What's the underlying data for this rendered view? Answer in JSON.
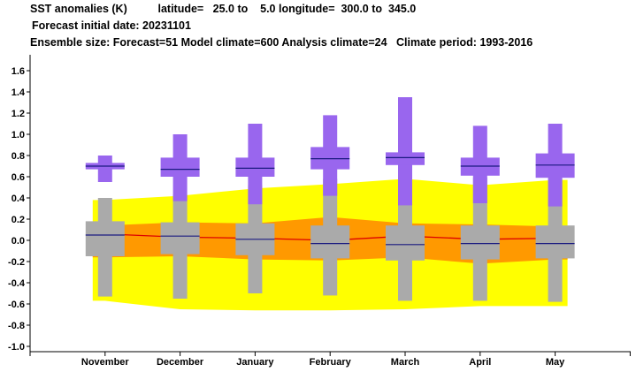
{
  "header": {
    "line1": "SST anomalies (K)          latitude=   25.0 to    5.0 longitude=  300.0 to  345.0",
    "line2": "Forecast initial date: 20231101",
    "line3": "Ensemble size: Forecast=51 Model climate=600 Analysis climate=24   Climate period: 1993-2016"
  },
  "colors": {
    "forecast_box": "#9966ee",
    "climate_box": "#aaaaaa",
    "outer_band": "#ffff00",
    "inner_band": "#ff9900",
    "median_line": "#1a1a80",
    "mean_line": "#dd0000"
  },
  "chart_data": {
    "type": "box",
    "categories": [
      "November",
      "December",
      "January",
      "February",
      "March",
      "April",
      "May"
    ],
    "ylim": [
      -1.05,
      1.75
    ],
    "yticks": [
      "-1.0",
      "-0.8",
      "-0.6",
      "-0.4",
      "-0.2",
      "0.0",
      "0.2",
      "0.4",
      "0.6",
      "0.8",
      "1.0",
      "1.2",
      "1.4",
      "1.6"
    ],
    "grid": false,
    "forecast": {
      "min": [
        0.55,
        0.37,
        0.34,
        0.42,
        0.33,
        0.35,
        0.32
      ],
      "p25": [
        0.67,
        0.6,
        0.6,
        0.67,
        0.71,
        0.61,
        0.59
      ],
      "median": [
        0.7,
        0.67,
        0.68,
        0.77,
        0.78,
        0.7,
        0.71
      ],
      "p75": [
        0.73,
        0.78,
        0.78,
        0.88,
        0.83,
        0.78,
        0.82
      ],
      "max": [
        0.8,
        1.0,
        1.1,
        1.18,
        1.35,
        1.08,
        1.1
      ]
    },
    "model_climate": {
      "min": [
        -0.53,
        -0.55,
        -0.5,
        -0.52,
        -0.57,
        -0.57,
        -0.58
      ],
      "p25": [
        -0.15,
        -0.13,
        -0.14,
        -0.17,
        -0.19,
        -0.18,
        -0.17
      ],
      "median": [
        0.05,
        0.04,
        0.01,
        -0.03,
        -0.04,
        -0.03,
        -0.03
      ],
      "p75": [
        0.18,
        0.17,
        0.16,
        0.14,
        0.14,
        0.14,
        0.14
      ],
      "max": [
        0.4,
        0.43,
        0.52,
        0.58,
        0.65,
        0.59,
        0.58
      ]
    },
    "analysis_climate": {
      "min": [
        -0.57,
        -0.65,
        -0.66,
        -0.66,
        -0.65,
        -0.62,
        -0.62
      ],
      "p25": [
        -0.16,
        -0.15,
        -0.18,
        -0.19,
        -0.16,
        -0.22,
        -0.18
      ],
      "mean": [
        0.06,
        0.03,
        0.02,
        0.0,
        0.04,
        0.01,
        0.02
      ],
      "p75": [
        0.14,
        0.17,
        0.16,
        0.22,
        0.16,
        0.15,
        0.13
      ],
      "max": [
        0.38,
        0.42,
        0.49,
        0.53,
        0.58,
        0.52,
        0.57
      ]
    }
  }
}
